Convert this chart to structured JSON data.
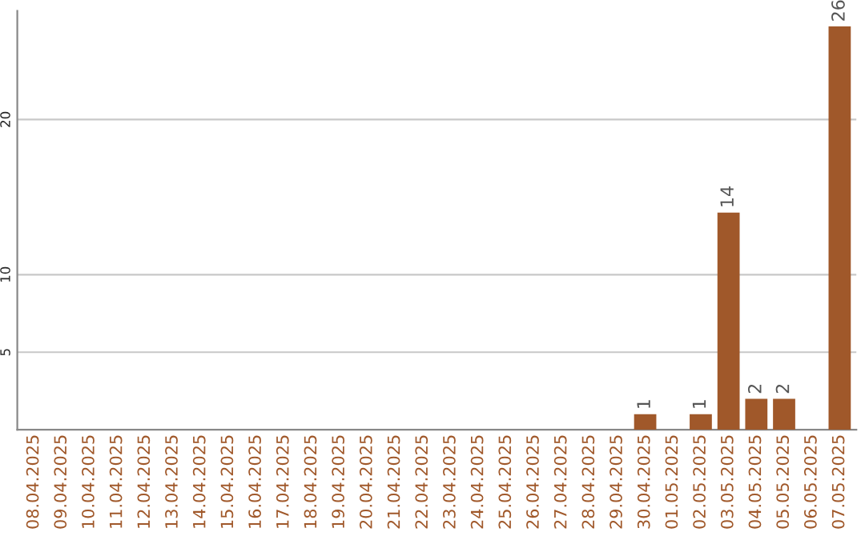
{
  "chart_data": {
    "type": "bar",
    "categories": [
      "08.04.2025",
      "09.04.2025",
      "10.04.2025",
      "11.04.2025",
      "12.04.2025",
      "13.04.2025",
      "14.04.2025",
      "15.04.2025",
      "16.04.2025",
      "17.04.2025",
      "18.04.2025",
      "19.04.2025",
      "20.04.2025",
      "21.04.2025",
      "22.04.2025",
      "23.04.2025",
      "24.04.2025",
      "25.04.2025",
      "26.04.2025",
      "27.04.2025",
      "28.04.2025",
      "29.04.2025",
      "30.04.2025",
      "01.05.2025",
      "02.05.2025",
      "03.05.2025",
      "04.05.2025",
      "05.05.2025",
      "06.05.2025",
      "07.05.2025"
    ],
    "values": [
      0,
      0,
      0,
      0,
      0,
      0,
      0,
      0,
      0,
      0,
      0,
      0,
      0,
      0,
      0,
      0,
      0,
      0,
      0,
      0,
      0,
      0,
      1,
      0,
      1,
      14,
      2,
      2,
      0,
      26
    ],
    "value_labels": [
      null,
      null,
      null,
      null,
      null,
      null,
      null,
      null,
      null,
      null,
      null,
      null,
      null,
      null,
      null,
      null,
      null,
      null,
      null,
      null,
      null,
      null,
      "1",
      null,
      "1",
      "14",
      "2",
      "2",
      null,
      "26"
    ],
    "color": "#a0582a",
    "ylim": [
      0,
      27
    ],
    "yticks": [
      5,
      10,
      20
    ],
    "grid": "y",
    "legend": false
  }
}
